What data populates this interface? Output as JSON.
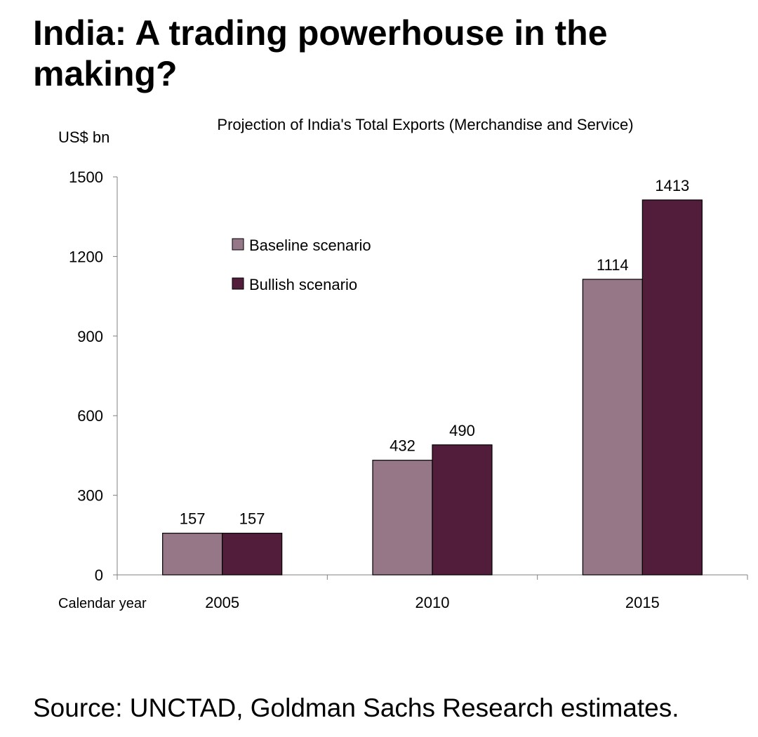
{
  "page": {
    "headline": "India: A trading powerhouse in the making?",
    "source": "Source: UNCTAD, Goldman Sachs Research estimates."
  },
  "colors": {
    "baseline": "#957787",
    "bullish": "#521d3a",
    "axis": "#808080"
  },
  "chart_data": {
    "type": "bar",
    "title": "Projection of India's Total Exports (Merchandise and Service)",
    "ylabel": "US$ bn",
    "xlabel": "Calendar year",
    "categories": [
      "2005",
      "2010",
      "2015"
    ],
    "series": [
      {
        "name": "Baseline scenario",
        "values": [
          157,
          432,
          1114
        ]
      },
      {
        "name": "Bullish scenario",
        "values": [
          157,
          490,
          1413
        ]
      }
    ],
    "ylim": [
      0,
      1500
    ],
    "yticks": [
      0,
      300,
      600,
      900,
      1200,
      1500
    ],
    "grid": false,
    "legend": "top-left inside plot"
  }
}
